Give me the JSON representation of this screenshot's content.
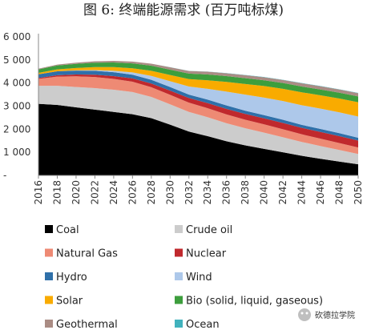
{
  "title": "图 6: 终端能源需求 (百万吨标煤)",
  "watermark_text": "砍德拉学院",
  "chart_data": {
    "type": "area",
    "stacked": true,
    "title": "图 6: 终端能源需求 (百万吨标煤)",
    "xlabel": "",
    "ylabel": "",
    "x": [
      2016,
      2018,
      2020,
      2022,
      2024,
      2026,
      2028,
      2030,
      2032,
      2034,
      2036,
      2038,
      2040,
      2042,
      2044,
      2046,
      2048,
      2050
    ],
    "xlim": [
      2016,
      2050
    ],
    "ylim": [
      0,
      6000
    ],
    "y_ticks": [
      0,
      1000,
      2000,
      3000,
      4000,
      5000,
      6000
    ],
    "y_tick_labels": [
      "-",
      "1 000",
      "2 000",
      "3 000",
      "4 000",
      "5 000",
      "6 000"
    ],
    "grid": false,
    "legend": "bottom",
    "series": [
      {
        "name": "Coal",
        "color": "#000000",
        "values": [
          3100,
          3050,
          2950,
          2850,
          2750,
          2650,
          2480,
          2200,
          1900,
          1700,
          1480,
          1300,
          1150,
          1000,
          850,
          720,
          600,
          480
        ]
      },
      {
        "name": "Crude oil",
        "color": "#cccccc",
        "values": [
          780,
          830,
          880,
          930,
          960,
          960,
          920,
          880,
          850,
          820,
          780,
          740,
          700,
          650,
          600,
          550,
          500,
          450
        ]
      },
      {
        "name": "Natural Gas",
        "color": "#ee8a74",
        "values": [
          300,
          400,
          460,
          480,
          470,
          450,
          420,
          410,
          400,
          390,
          380,
          370,
          360,
          350,
          330,
          320,
          300,
          280
        ]
      },
      {
        "name": "Nuclear",
        "color": "#c0292d",
        "values": [
          40,
          60,
          80,
          100,
          120,
          140,
          160,
          180,
          200,
          220,
          240,
          250,
          260,
          270,
          280,
          290,
          300,
          300
        ]
      },
      {
        "name": "Hydro",
        "color": "#2f70a9",
        "values": [
          160,
          170,
          170,
          170,
          170,
          160,
          160,
          160,
          150,
          150,
          150,
          140,
          140,
          140,
          130,
          130,
          130,
          120
        ]
      },
      {
        "name": "Wind",
        "color": "#adc8ea",
        "values": [
          0,
          0,
          10,
          30,
          60,
          100,
          170,
          250,
          350,
          470,
          600,
          700,
          760,
          810,
          850,
          880,
          900,
          920
        ]
      },
      {
        "name": "Solar",
        "color": "#f9ab00",
        "values": [
          60,
          80,
          100,
          130,
          160,
          180,
          220,
          270,
          320,
          370,
          420,
          460,
          500,
          530,
          560,
          580,
          600,
          620
        ]
      },
      {
        "name": "Bio (solid, liquid, gaseous)",
        "color": "#3d9e3d",
        "values": [
          150,
          170,
          180,
          190,
          200,
          210,
          220,
          230,
          240,
          250,
          250,
          250,
          250,
          250,
          250,
          250,
          250,
          250
        ]
      },
      {
        "name": "Geothermal",
        "color": "#aa8c84",
        "values": [
          30,
          40,
          50,
          60,
          70,
          80,
          90,
          100,
          110,
          120,
          120,
          130,
          130,
          130,
          140,
          140,
          140,
          140
        ]
      },
      {
        "name": "Ocean",
        "color": "#41b2bd",
        "values": [
          0,
          0,
          0,
          0,
          0,
          0,
          0,
          5,
          5,
          5,
          10,
          10,
          10,
          10,
          10,
          10,
          10,
          10
        ]
      }
    ]
  }
}
